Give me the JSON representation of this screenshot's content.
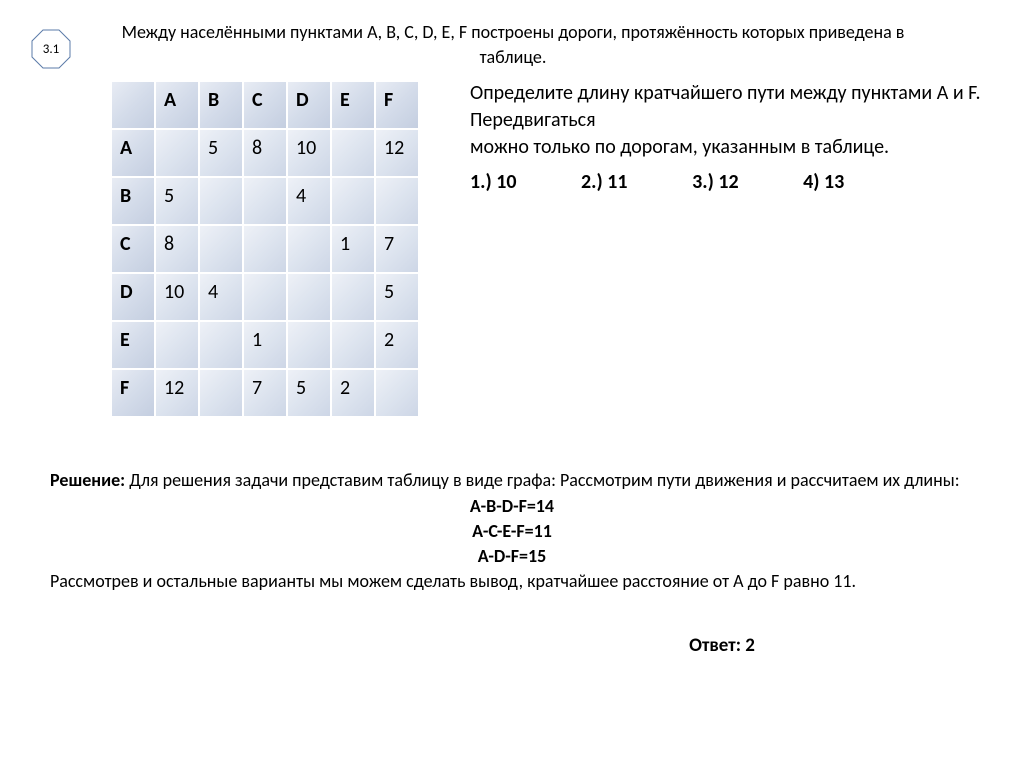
{
  "badge": {
    "label": "3.1",
    "stroke": "#5b7ba8"
  },
  "title": "Между населёнными пунктами A, B, C, D, E, F построены дороги, протяжённость которых приведена в таблице.",
  "table": {
    "columns": [
      "A",
      "B",
      "C",
      "D",
      "E",
      "F"
    ],
    "rows": [
      {
        "label": "A",
        "cells": [
          "",
          "5",
          "8",
          "10",
          "",
          "12"
        ]
      },
      {
        "label": "B",
        "cells": [
          "5",
          "",
          "",
          "4",
          "",
          ""
        ]
      },
      {
        "label": "C",
        "cells": [
          "8",
          "",
          "",
          "",
          "1",
          "7"
        ]
      },
      {
        "label": "D",
        "cells": [
          "10",
          "4",
          "",
          "",
          "",
          "5"
        ]
      },
      {
        "label": "E",
        "cells": [
          "",
          "",
          "1",
          "",
          "",
          "2"
        ]
      },
      {
        "label": "F",
        "cells": [
          "12",
          "",
          "7",
          "5",
          "2",
          ""
        ]
      }
    ],
    "header_bg": "#d4dcea",
    "cell_bg": "#dde4ef",
    "font_size": 20
  },
  "question": {
    "line1": "Определите длину кратчайшего пути между пунктами А и F. Передвигаться",
    "line2": "можно только по дорогам, указанным в таблице."
  },
  "options": [
    {
      "label": "1.) 10"
    },
    {
      "label": "2.) 11"
    },
    {
      "label": "3.) 12"
    },
    {
      "label": "4) 13"
    }
  ],
  "solution": {
    "lead_bold": "Решение:",
    "lead_text": " Для решения задачи представим таблицу в виде графа: Рассмотрим пути движения и рассчитаем их длины:",
    "paths": [
      "A-B-D-F=14",
      "A-C-E-F=11",
      "A-D-F=15"
    ],
    "conclusion": "Рассмотрев и остальные варианты мы можем сделать вывод, кратчайшее расстояние от А до F равно 11."
  },
  "answer": "Ответ: 2"
}
